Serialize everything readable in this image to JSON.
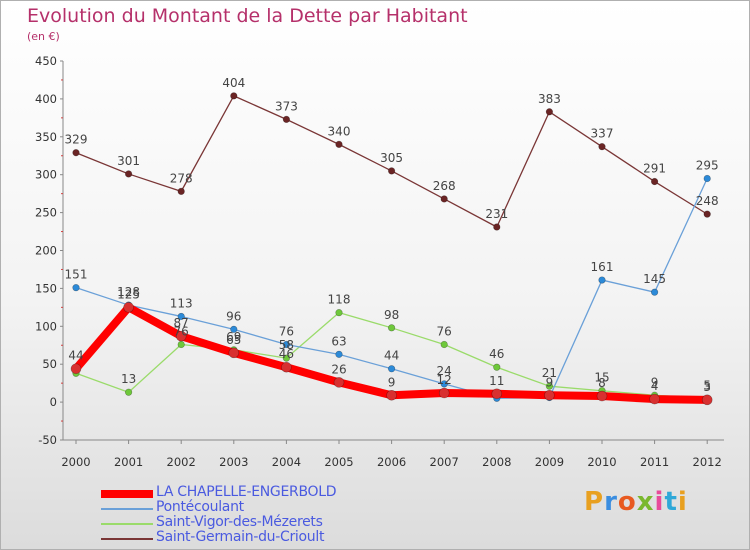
{
  "title": "Evolution du Montant de la Dette par Habitant",
  "subtitle": "(en €)",
  "logo": {
    "letters": [
      "P",
      "r",
      "o",
      "x",
      "i",
      "t",
      "i"
    ],
    "colors": [
      "#e8a020",
      "#3a8de0",
      "#e85a20",
      "#7ab82e",
      "#e84a9a",
      "#2fa8d8",
      "#e8a020"
    ]
  },
  "chart_data": {
    "type": "line",
    "x": [
      "2000",
      "2001",
      "2002",
      "2003",
      "2004",
      "2005",
      "2006",
      "2007",
      "2008",
      "2009",
      "2010",
      "2011",
      "2012"
    ],
    "y_ticks": [
      "-50",
      "0",
      "50",
      "100",
      "150",
      "200",
      "250",
      "300",
      "350",
      "400",
      "450"
    ],
    "ylim": [
      -50,
      450
    ],
    "grid": false,
    "legend_position": "bottom",
    "series": [
      {
        "name": "LA CHAPELLE-ENGERBOLD",
        "color": "#ff0000",
        "marker": "#d83030",
        "values": [
          44,
          125,
          87,
          65,
          46,
          26,
          9,
          12,
          11,
          9,
          8,
          4,
          3
        ],
        "labels": [
          "44",
          "125",
          "87",
          "65",
          "46",
          "26",
          "9",
          "",
          "",
          "",
          "",
          "",
          ""
        ]
      },
      {
        "name": "Pontécoulant",
        "color": "#6aa0d8",
        "marker": "#2c8ad8",
        "values": [
          151,
          128,
          113,
          96,
          76,
          63,
          44,
          24,
          5,
          6,
          161,
          145,
          295
        ],
        "labels": [
          "151",
          "128",
          "113",
          "96",
          "76",
          "63",
          "44",
          "24",
          "",
          "",
          "161",
          "145",
          "295"
        ]
      },
      {
        "name": "Saint-Vigor-des-Mézerets",
        "color": "#9adb6a",
        "marker": "#6ec83a",
        "values": [
          38,
          13,
          76,
          69,
          58,
          118,
          98,
          76,
          46,
          21,
          15,
          9,
          5
        ],
        "labels": [
          "",
          "13",
          "76",
          "69",
          "58",
          "118",
          "98",
          "76",
          "46",
          "21",
          "15",
          "9",
          "5"
        ]
      },
      {
        "name": "Saint-Germain-du-Crioult",
        "color": "#7a3636",
        "marker": "#6a2424",
        "values": [
          329,
          301,
          278,
          404,
          373,
          340,
          305,
          268,
          231,
          383,
          337,
          291,
          248
        ],
        "labels": [
          "329",
          "301",
          "278",
          "404",
          "373",
          "340",
          "305",
          "268",
          "231",
          "383",
          "337",
          "291",
          "248"
        ]
      }
    ],
    "extra_labels": [
      {
        "x_index": 7,
        "value": 12,
        "text": "12"
      },
      {
        "x_index": 8,
        "value": 11,
        "text": "11"
      },
      {
        "x_index": 9,
        "value": 9,
        "text": "9"
      },
      {
        "x_index": 10,
        "value": 8,
        "text": "8"
      },
      {
        "x_index": 11,
        "value": 4,
        "text": "4"
      },
      {
        "x_index": 12,
        "value": 3,
        "text": "3"
      }
    ]
  }
}
